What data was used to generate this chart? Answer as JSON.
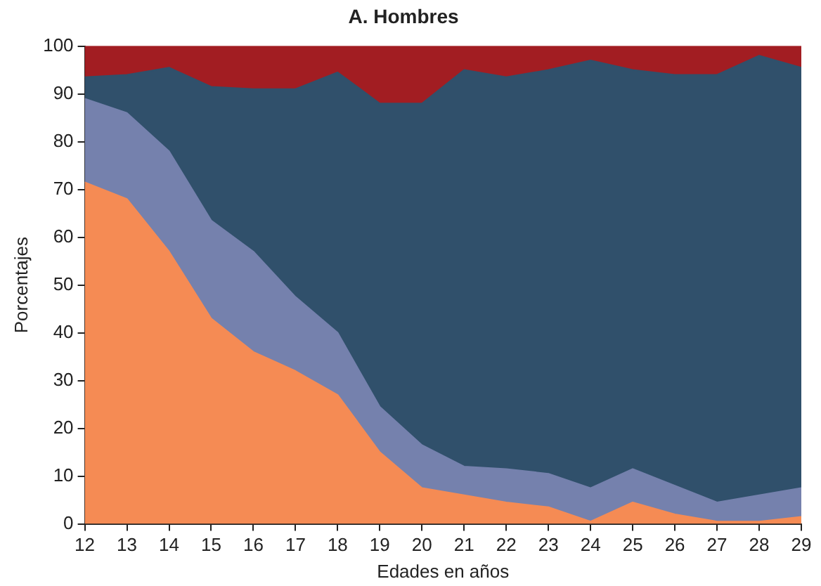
{
  "chart_data": {
    "type": "area",
    "title": "A. Hombres",
    "xlabel": "Edades en años",
    "ylabel": "Porcentajes",
    "stacked": true,
    "x": [
      12,
      13,
      14,
      15,
      16,
      17,
      18,
      19,
      20,
      21,
      22,
      23,
      24,
      25,
      26,
      27,
      28,
      29
    ],
    "xlim": [
      12,
      29
    ],
    "xticks": [
      12,
      13,
      14,
      15,
      16,
      17,
      18,
      19,
      20,
      21,
      22,
      23,
      24,
      25,
      26,
      27,
      28,
      29
    ],
    "ylim": [
      0,
      100
    ],
    "yticks": [
      0,
      10,
      20,
      30,
      40,
      50,
      60,
      70,
      80,
      90,
      100
    ],
    "grid": false,
    "legend": false,
    "series": [
      {
        "color": "#f58b54",
        "values": [
          71.5,
          68,
          57,
          43,
          36,
          32,
          27,
          15,
          7.5,
          6,
          4.5,
          3.5,
          0.5,
          4.5,
          2,
          0.5,
          0.5,
          1.5
        ]
      },
      {
        "color": "#7581ad",
        "values": [
          17.5,
          18,
          21,
          20.5,
          21,
          15.5,
          13,
          9.5,
          9,
          6,
          7,
          7,
          7,
          7,
          6,
          4,
          5.5,
          6
        ]
      },
      {
        "color": "#30506b",
        "values": [
          4.5,
          8,
          17.5,
          28,
          34,
          43.5,
          54.5,
          63.5,
          71.5,
          83,
          82,
          84.5,
          89.5,
          83.5,
          86,
          89.5,
          92,
          88
        ]
      },
      {
        "color": "#a21d22",
        "values": [
          6.5,
          6,
          4.5,
          8.5,
          9,
          9,
          5.5,
          12,
          12,
          5,
          6.5,
          5,
          3,
          5,
          6,
          6,
          2,
          4.5
        ]
      }
    ]
  }
}
